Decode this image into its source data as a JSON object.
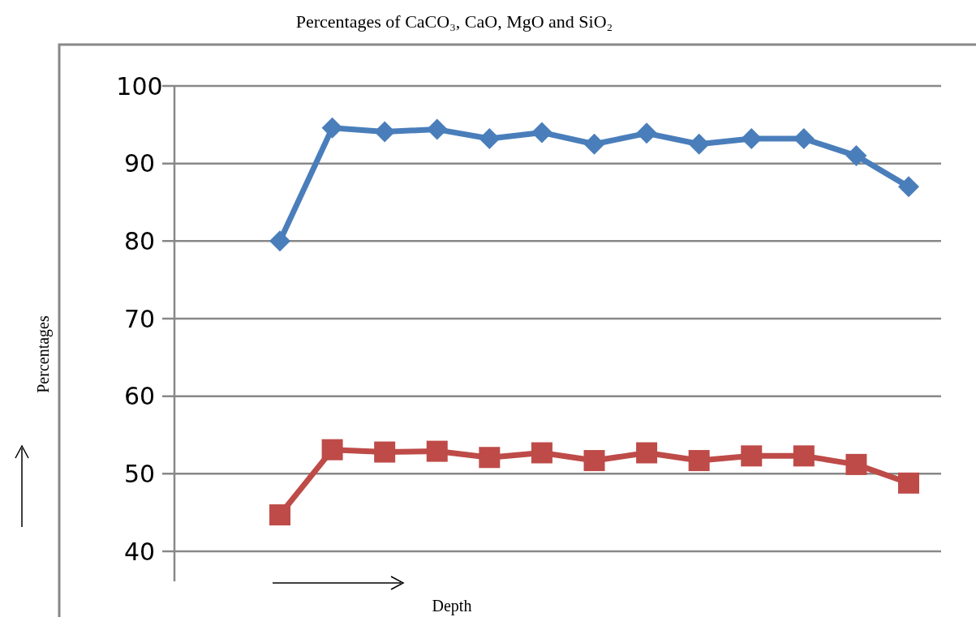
{
  "chart_data": {
    "type": "line",
    "title": "Percentages of CaCO₃, CaO, MgO and SiO₂",
    "xlabel": "Depth",
    "ylabel": "Percentages",
    "categories": [
      null,
      null,
      null,
      null,
      null,
      null,
      null,
      null,
      null,
      null,
      null,
      null,
      null
    ],
    "series": [
      {
        "color": "#4a7ebb",
        "marker": "diamond",
        "values": [
          80.0,
          94.6,
          94.1,
          94.4,
          93.2,
          94.0,
          92.5,
          93.9,
          92.5,
          93.2,
          93.2,
          91.0,
          87.0
        ]
      },
      {
        "color": "#be4b48",
        "marker": "square",
        "values": [
          44.7,
          53.1,
          52.8,
          52.9,
          52.1,
          52.7,
          51.7,
          52.7,
          51.7,
          52.3,
          52.3,
          51.2,
          48.8
        ]
      }
    ],
    "ylim": [
      40,
      100
    ],
    "yticks": [
      40,
      50,
      60,
      70,
      80,
      90,
      100
    ],
    "grid": "y",
    "line_style": "solid",
    "tick_labels": "y"
  }
}
